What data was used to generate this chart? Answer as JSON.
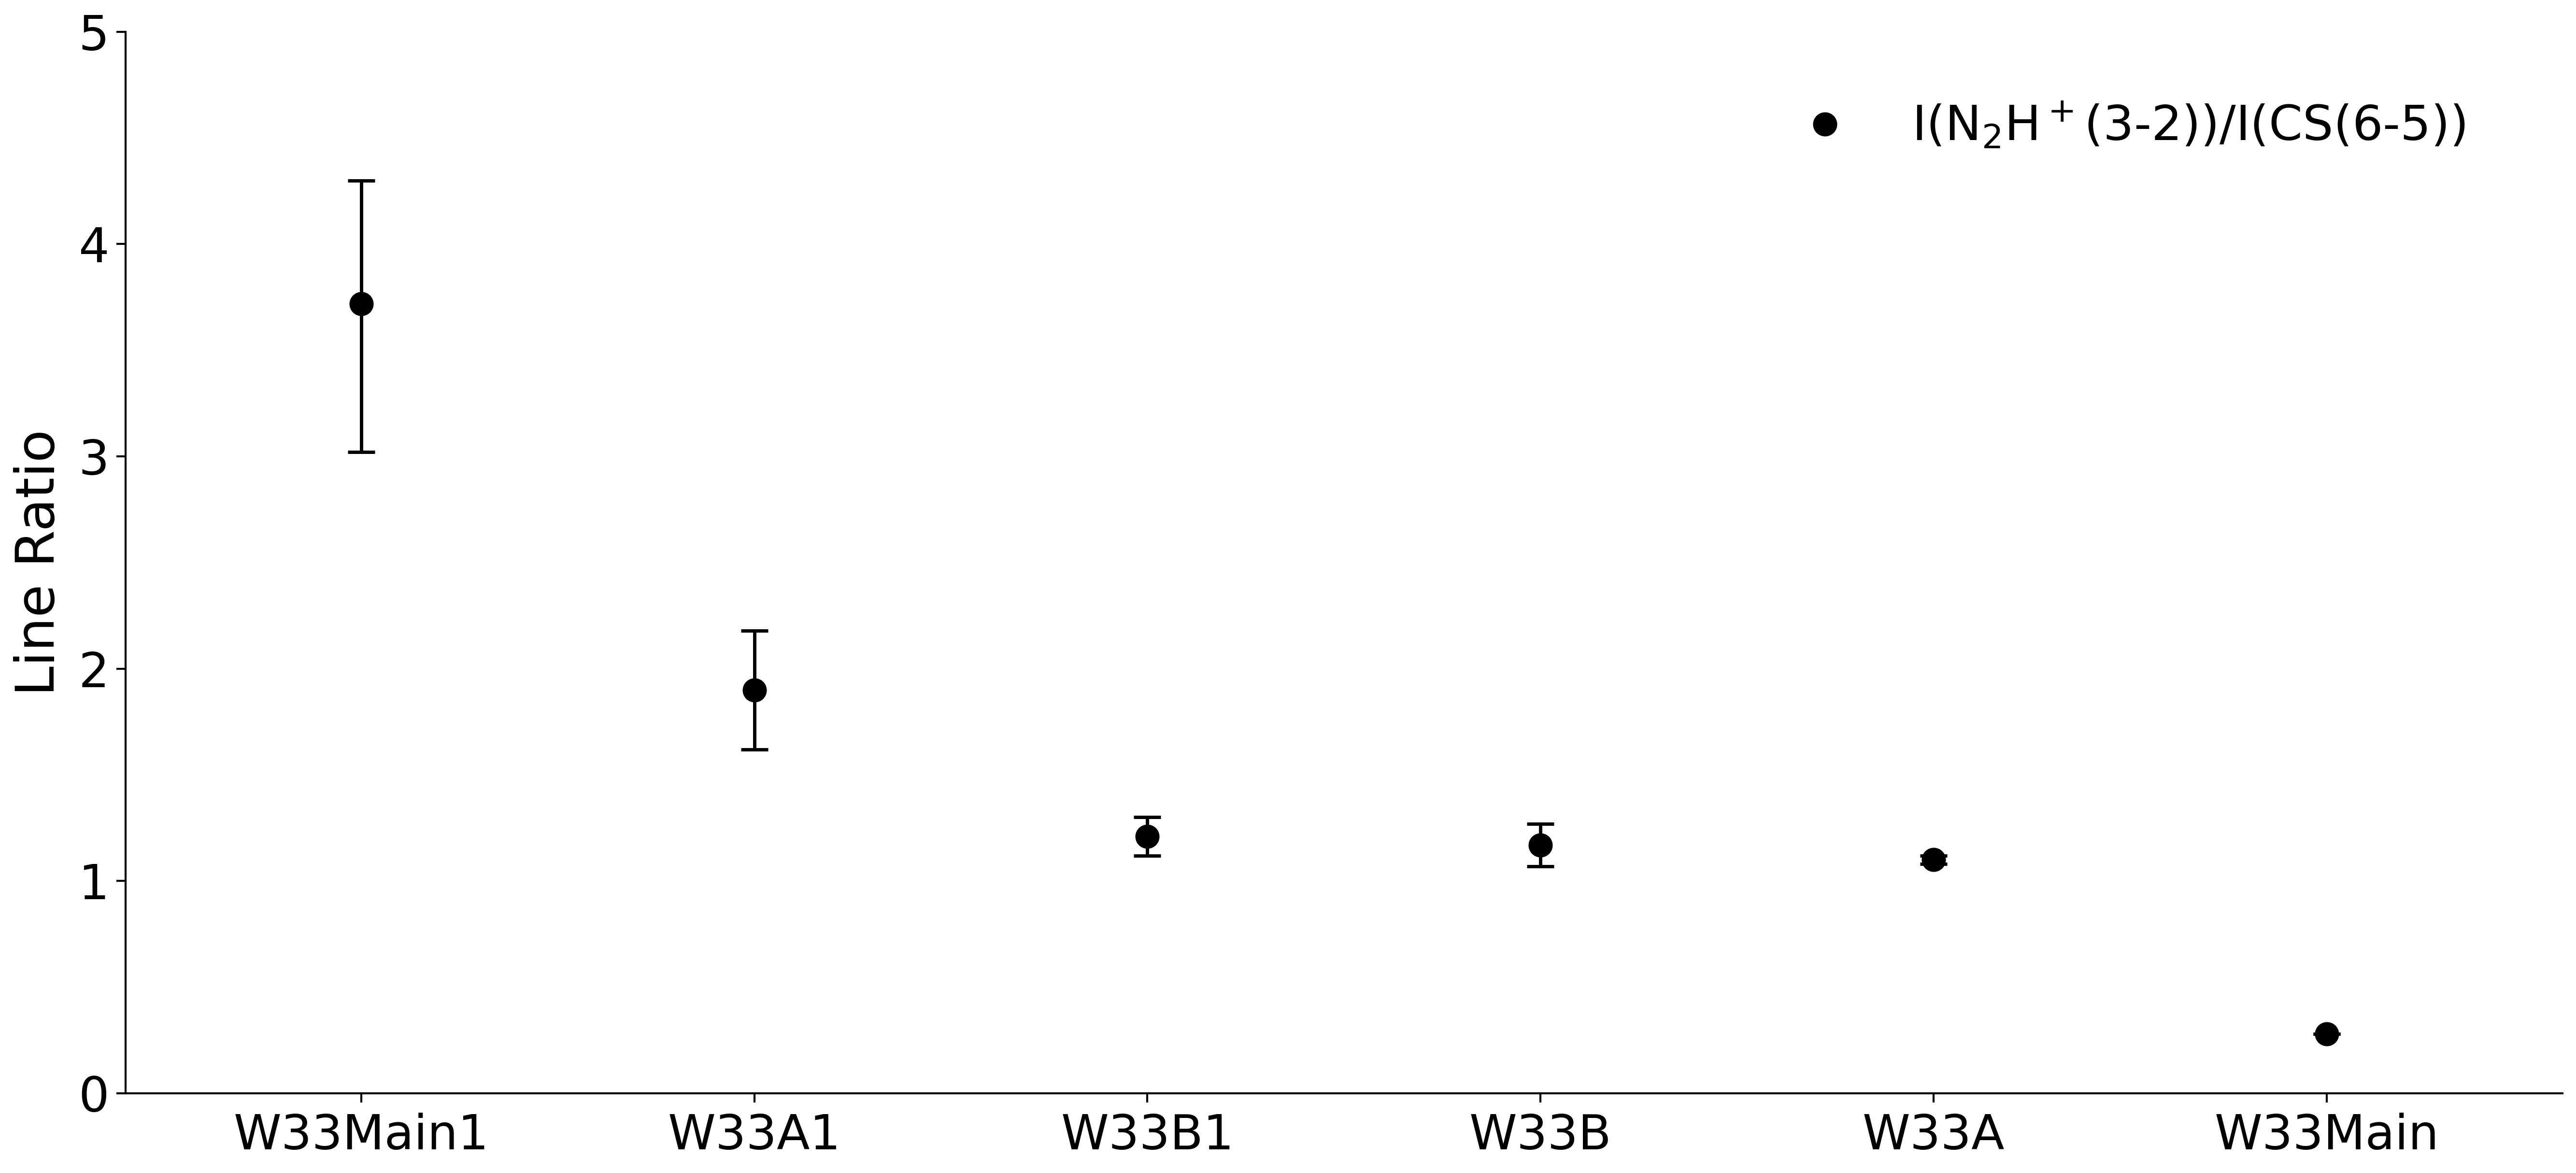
{
  "categories": [
    "W33Main1",
    "W33A1",
    "W33B1",
    "W33B",
    "W33A",
    "W33Main"
  ],
  "values": [
    3.72,
    1.9,
    1.21,
    1.17,
    1.1,
    0.28
  ],
  "yerr_upper": [
    0.58,
    0.28,
    0.09,
    0.1,
    0.02,
    0.0
  ],
  "yerr_lower": [
    0.7,
    0.28,
    0.09,
    0.1,
    0.02,
    0.0
  ],
  "ylabel": "Line Ratio",
  "ylim": [
    0,
    5
  ],
  "yticks": [
    0,
    1,
    2,
    3,
    4,
    5
  ],
  "legend_label": "I(N$_2$H$^+$(3-2))/I(CS(6-5))",
  "marker_color": "black",
  "marker_size": 35,
  "capsize": 20,
  "background_color": "#ffffff",
  "ylabel_fontsize": 80,
  "tick_fontsize": 72,
  "legend_fontsize": 72,
  "elinewidth": 5,
  "capthick": 5
}
